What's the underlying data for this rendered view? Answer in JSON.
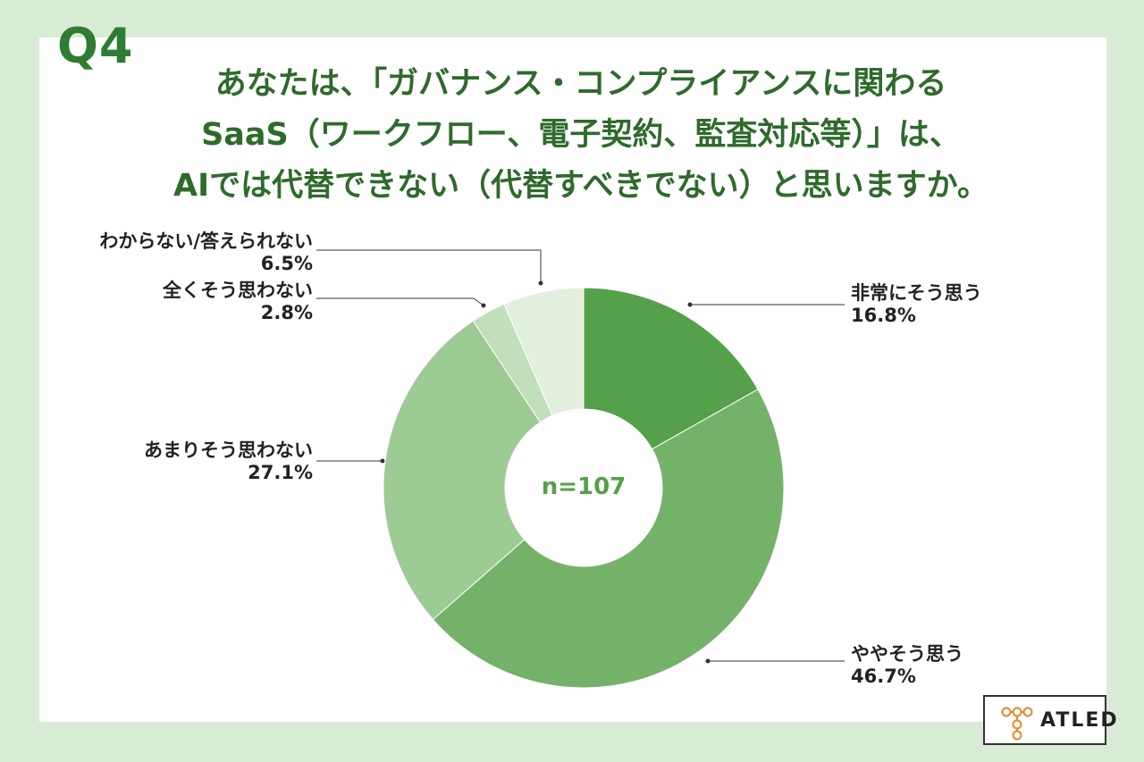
{
  "question_number": "Q4",
  "title_lines": [
    "あなたは、「ガバナンス・コンプライアンスに関わる",
    "SaaS（ワークフロー、電子契約、監査対応等）」は、",
    "AIでは代替できない（代替すべきでない）と思いますか。"
  ],
  "chart_data": {
    "type": "pie",
    "donut": true,
    "center_label": "n=107",
    "categories": [
      "非常にそう思う",
      "ややそう思う",
      "あまりそう思わない",
      "全くそう思わない",
      "わからない/答えられない"
    ],
    "values": [
      16.8,
      46.7,
      27.1,
      2.8,
      6.5
    ],
    "value_labels": [
      "16.8%",
      "46.7%",
      "27.1%",
      "2.8%",
      "6.5%"
    ],
    "colors": [
      "#55a04a",
      "#74b26a",
      "#9ccb94",
      "#c1dfba",
      "#e2efde"
    ]
  },
  "logo": {
    "text": "ATLED"
  }
}
